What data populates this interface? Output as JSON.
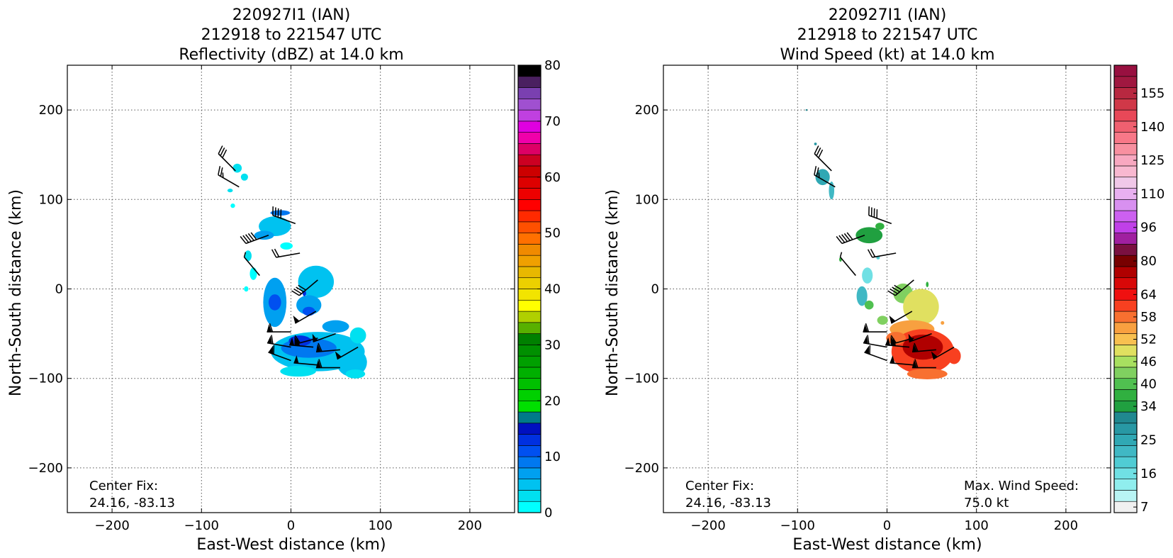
{
  "chart_data": [
    {
      "type": "heatmap",
      "title_lines": [
        "220927I1 (IAN)",
        "212918 to 221547 UTC",
        "Reflectivity (dBZ) at 14.0 km"
      ],
      "xlabel": "East-West distance (km)",
      "ylabel": "North-South distance (km)",
      "xlim": [
        -250,
        250
      ],
      "ylim": [
        -250,
        250
      ],
      "xticks": [
        -200,
        -100,
        0,
        100,
        200
      ],
      "yticks": [
        -200,
        -100,
        0,
        100,
        200
      ],
      "tick_labels_x": [
        "−200",
        "−100",
        "0",
        "100",
        "200"
      ],
      "tick_labels_y": [
        "−200",
        "−100",
        "0",
        "100",
        "200"
      ],
      "grid": true,
      "annotations": [
        {
          "line1": "Center Fix:",
          "line2": "24.16, -83.13",
          "corner": "bottom-left"
        }
      ],
      "colorbar": {
        "min": 0,
        "max": 80,
        "ticks": [
          "0",
          "10",
          "20",
          "30",
          "40",
          "50",
          "60",
          "70",
          "80"
        ],
        "colors": [
          "#00ffff",
          "#00e0f0",
          "#00c2f0",
          "#00a0f0",
          "#0078f0",
          "#0050f0",
          "#0030e0",
          "#0010c0",
          "#007a8a",
          "#00e000",
          "#00d000",
          "#00c000",
          "#00b000",
          "#00a000",
          "#009000",
          "#008000",
          "#58b000",
          "#b0d000",
          "#ffff00",
          "#f2e400",
          "#ecd000",
          "#e8b800",
          "#f0a000",
          "#f08a00",
          "#ff7000",
          "#ff5000",
          "#ff2a00",
          "#ff0000",
          "#ee0000",
          "#dd0000",
          "#cc0000",
          "#cc0022",
          "#dd0066",
          "#f000aa",
          "#e000e0",
          "#c040e0",
          "#a050d0",
          "#7a40b0",
          "#4a2060",
          "#000000"
        ]
      },
      "blobs": [
        {
          "x": -60,
          "y": 135,
          "w": 10,
          "h": 10,
          "value": 3
        },
        {
          "x": -52,
          "y": 125,
          "w": 8,
          "h": 8,
          "value": 2
        },
        {
          "x": -68,
          "y": 110,
          "w": 6,
          "h": 4,
          "value": 2
        },
        {
          "x": -65,
          "y": 93,
          "w": 5,
          "h": 5,
          "value": 1
        },
        {
          "x": -12,
          "y": 85,
          "w": 22,
          "h": 6,
          "value": 9
        },
        {
          "x": -18,
          "y": 70,
          "w": 36,
          "h": 22,
          "value": 5
        },
        {
          "x": -30,
          "y": 60,
          "w": 22,
          "h": 10,
          "value": 7
        },
        {
          "x": -5,
          "y": 48,
          "w": 14,
          "h": 8,
          "value": 1
        },
        {
          "x": -48,
          "y": 37,
          "w": 8,
          "h": 12,
          "value": 2
        },
        {
          "x": -42,
          "y": 17,
          "w": 8,
          "h": 14,
          "value": 1
        },
        {
          "x": -50,
          "y": 0,
          "w": 5,
          "h": 6,
          "value": 1
        },
        {
          "x": -18,
          "y": -15,
          "w": 26,
          "h": 55,
          "value": 6
        },
        {
          "x": -18,
          "y": -15,
          "w": 14,
          "h": 18,
          "value": 10
        },
        {
          "x": 28,
          "y": 8,
          "w": 40,
          "h": 36,
          "value": 4
        },
        {
          "x": 20,
          "y": -18,
          "w": 28,
          "h": 22,
          "value": 7
        },
        {
          "x": 20,
          "y": -25,
          "w": 14,
          "h": 10,
          "value": 11
        },
        {
          "x": 30,
          "y": -70,
          "w": 105,
          "h": 44,
          "value": 5
        },
        {
          "x": 20,
          "y": -66,
          "w": 62,
          "h": 22,
          "value": 9
        },
        {
          "x": 10,
          "y": -58,
          "w": 25,
          "h": 12,
          "value": 12
        },
        {
          "x": 8,
          "y": -92,
          "w": 40,
          "h": 12,
          "value": 3
        },
        {
          "x": 68,
          "y": -82,
          "w": 34,
          "h": 32,
          "value": 5
        },
        {
          "x": 72,
          "y": -95,
          "w": 22,
          "h": 10,
          "value": 3
        },
        {
          "x": 50,
          "y": -42,
          "w": 30,
          "h": 14,
          "value": 6
        },
        {
          "x": 75,
          "y": -52,
          "w": 18,
          "h": 18,
          "value": 3
        },
        {
          "x": 15,
          "y": -5,
          "w": 4,
          "h": 6,
          "value": 12
        }
      ],
      "barbs": [
        {
          "x": -62,
          "y": 132,
          "dir": 315,
          "flags": [
            1,
            1,
            1
          ]
        },
        {
          "x": -58,
          "y": 114,
          "dir": 300,
          "flags": [
            1,
            1,
            0.5
          ]
        },
        {
          "x": 5,
          "y": 73,
          "dir": 290,
          "flags": [
            1,
            1,
            1,
            1
          ]
        },
        {
          "x": -25,
          "y": 60,
          "dir": 250,
          "flags": [
            1,
            1,
            1,
            1,
            1
          ]
        },
        {
          "x": 10,
          "y": 40,
          "dir": 260,
          "flags": [
            1,
            1
          ]
        },
        {
          "x": -35,
          "y": 15,
          "dir": 320,
          "flags": [
            0.5
          ]
        },
        {
          "x": 30,
          "y": 10,
          "dir": 230,
          "flags": [
            1,
            1,
            1,
            1
          ]
        },
        {
          "x": 28,
          "y": -25,
          "dir": 240,
          "flags": [
            5
          ]
        },
        {
          "x": 0,
          "y": -48,
          "dir": 270,
          "flags": [
            5,
            1
          ]
        },
        {
          "x": 30,
          "y": -55,
          "dir": 255,
          "flags": [
            5,
            1
          ]
        },
        {
          "x": 50,
          "y": -50,
          "dir": 250,
          "flags": [
            5
          ]
        },
        {
          "x": 0,
          "y": -65,
          "dir": 280,
          "flags": [
            5,
            1
          ]
        },
        {
          "x": 25,
          "y": -65,
          "dir": 275,
          "flags": [
            5,
            5
          ]
        },
        {
          "x": 55,
          "y": -68,
          "dir": 265,
          "flags": [
            5,
            1
          ]
        },
        {
          "x": 75,
          "y": -65,
          "dir": 240,
          "flags": [
            5
          ]
        },
        {
          "x": 0,
          "y": -80,
          "dir": 290,
          "flags": [
            5,
            1
          ]
        },
        {
          "x": 30,
          "y": -85,
          "dir": 275,
          "flags": [
            5
          ]
        },
        {
          "x": 55,
          "y": -88,
          "dir": 270,
          "flags": [
            5,
            1
          ]
        }
      ]
    },
    {
      "type": "heatmap",
      "title_lines": [
        "220927I1 (IAN)",
        "212918 to 221547 UTC",
        "Wind Speed (kt) at 14.0 km"
      ],
      "xlabel": "East-West distance (km)",
      "ylabel": "North-South distance (km)",
      "xlim": [
        -250,
        250
      ],
      "ylim": [
        -250,
        250
      ],
      "xticks": [
        -200,
        -100,
        0,
        100,
        200
      ],
      "yticks": [
        -200,
        -100,
        0,
        100,
        200
      ],
      "tick_labels_x": [
        "−200",
        "−100",
        "0",
        "100",
        "200"
      ],
      "tick_labels_y": [
        "−200",
        "−100",
        "0",
        "100",
        "200"
      ],
      "grid": true,
      "annotations": [
        {
          "line1": "Center Fix:",
          "line2": "24.16, -83.13",
          "corner": "bottom-left"
        },
        {
          "line1": "Max. Wind Speed:",
          "line2": "75.0 kt",
          "corner": "bottom-right"
        }
      ],
      "colorbar": {
        "ticks": [
          "7",
          "16",
          "25",
          "34",
          "40",
          "46",
          "52",
          "58",
          "64",
          "80",
          "96",
          "110",
          "125",
          "140",
          "155"
        ],
        "tick_slots": [
          0,
          3,
          6,
          9,
          11,
          13,
          15,
          17,
          19,
          22,
          25,
          28,
          31,
          34,
          37
        ],
        "colors": [
          "#f0f0f0",
          "#b8f4f4",
          "#90eeee",
          "#70e0e4",
          "#50ccd4",
          "#40b8c4",
          "#30a8b4",
          "#2898a4",
          "#208890",
          "#20a040",
          "#30b040",
          "#50c050",
          "#80d060",
          "#a8e060",
          "#e0e060",
          "#f8c050",
          "#f8a040",
          "#f87030",
          "#f84020",
          "#f01010",
          "#d80808",
          "#b00000",
          "#780000",
          "#7a1040",
          "#a020a0",
          "#c040e8",
          "#cc60f0",
          "#d890f0",
          "#e8b0f0",
          "#f0c8e8",
          "#f8b8d0",
          "#f8a8c0",
          "#f890a0",
          "#f87888",
          "#f06070",
          "#e84858",
          "#d03848",
          "#b82840",
          "#a01840",
          "#981040"
        ]
      },
      "blobs": [
        {
          "x": -90,
          "y": 200,
          "w": 2,
          "h": 2,
          "value": 30
        },
        {
          "x": -80,
          "y": 162,
          "w": 3,
          "h": 3,
          "value": 28
        },
        {
          "x": -72,
          "y": 125,
          "w": 16,
          "h": 18,
          "value": 24
        },
        {
          "x": -62,
          "y": 110,
          "w": 6,
          "h": 20,
          "value": 22
        },
        {
          "x": -20,
          "y": 60,
          "w": 30,
          "h": 18,
          "value": 34
        },
        {
          "x": -8,
          "y": 70,
          "w": 10,
          "h": 8,
          "value": 38
        },
        {
          "x": -52,
          "y": 33,
          "w": 3,
          "h": 5,
          "value": 36
        },
        {
          "x": -10,
          "y": 35,
          "w": 4,
          "h": 4,
          "value": 20
        },
        {
          "x": -22,
          "y": 15,
          "w": 12,
          "h": 18,
          "value": 16
        },
        {
          "x": -28,
          "y": -8,
          "w": 12,
          "h": 22,
          "value": 22
        },
        {
          "x": -20,
          "y": -18,
          "w": 10,
          "h": 10,
          "value": 40
        },
        {
          "x": -5,
          "y": -35,
          "w": 12,
          "h": 10,
          "value": 42
        },
        {
          "x": 18,
          "y": -5,
          "w": 22,
          "h": 22,
          "value": 44
        },
        {
          "x": 38,
          "y": -20,
          "w": 40,
          "h": 40,
          "value": 50
        },
        {
          "x": 28,
          "y": -45,
          "w": 50,
          "h": 20,
          "value": 56
        },
        {
          "x": 40,
          "y": -70,
          "w": 70,
          "h": 50,
          "value": 60
        },
        {
          "x": 40,
          "y": -65,
          "w": 45,
          "h": 28,
          "value": 72
        },
        {
          "x": 40,
          "y": -72,
          "w": 20,
          "h": 10,
          "value": 76
        },
        {
          "x": 10,
          "y": -55,
          "w": 22,
          "h": 14,
          "value": 58
        },
        {
          "x": 75,
          "y": -75,
          "w": 15,
          "h": 18,
          "value": 60
        },
        {
          "x": 45,
          "y": -95,
          "w": 45,
          "h": 12,
          "value": 58
        },
        {
          "x": 45,
          "y": 5,
          "w": 3,
          "h": 6,
          "value": 38
        },
        {
          "x": 62,
          "y": -38,
          "w": 4,
          "h": 4,
          "value": 56
        }
      ],
      "barbs": [
        {
          "x": -62,
          "y": 132,
          "dir": 315,
          "flags": [
            1,
            1,
            1
          ]
        },
        {
          "x": -58,
          "y": 114,
          "dir": 300,
          "flags": [
            1,
            1,
            0.5
          ]
        },
        {
          "x": 5,
          "y": 73,
          "dir": 290,
          "flags": [
            1,
            1,
            1,
            1
          ]
        },
        {
          "x": -25,
          "y": 60,
          "dir": 250,
          "flags": [
            1,
            1,
            1,
            1,
            1
          ]
        },
        {
          "x": 10,
          "y": 40,
          "dir": 260,
          "flags": [
            1,
            1
          ]
        },
        {
          "x": -35,
          "y": 15,
          "dir": 320,
          "flags": [
            0.5
          ]
        },
        {
          "x": 30,
          "y": 10,
          "dir": 230,
          "flags": [
            1,
            1,
            1,
            1
          ]
        },
        {
          "x": 28,
          "y": -25,
          "dir": 240,
          "flags": [
            5
          ]
        },
        {
          "x": 0,
          "y": -48,
          "dir": 270,
          "flags": [
            5,
            1
          ]
        },
        {
          "x": 30,
          "y": -55,
          "dir": 255,
          "flags": [
            5,
            1
          ]
        },
        {
          "x": 50,
          "y": -50,
          "dir": 250,
          "flags": [
            5
          ]
        },
        {
          "x": 0,
          "y": -65,
          "dir": 280,
          "flags": [
            5,
            1
          ]
        },
        {
          "x": 25,
          "y": -65,
          "dir": 275,
          "flags": [
            5,
            5
          ]
        },
        {
          "x": 55,
          "y": -68,
          "dir": 265,
          "flags": [
            5,
            1
          ]
        },
        {
          "x": 75,
          "y": -65,
          "dir": 240,
          "flags": [
            5
          ]
        },
        {
          "x": 0,
          "y": -80,
          "dir": 290,
          "flags": [
            5,
            1
          ]
        },
        {
          "x": 30,
          "y": -85,
          "dir": 275,
          "flags": [
            5
          ]
        },
        {
          "x": 55,
          "y": -88,
          "dir": 270,
          "flags": [
            5,
            1
          ]
        }
      ]
    }
  ]
}
